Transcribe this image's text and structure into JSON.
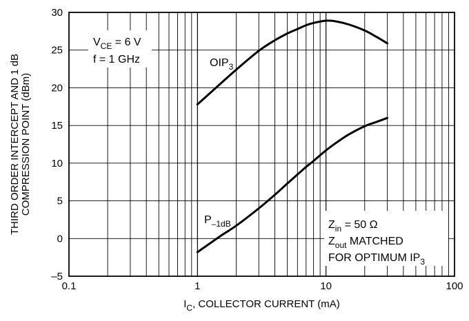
{
  "chart_data": {
    "type": "line",
    "title": "",
    "xlabel": {
      "main": "I",
      "sub": "C",
      "rest": ", COLLECTOR CURRENT (mA)"
    },
    "ylabel_lines": [
      "THIRD ORDER INTERCEPT AND 1 dB",
      "COMPRESSION POINT (dBm)"
    ],
    "x_scale": "log",
    "xlim": [
      0.1,
      100
    ],
    "ylim": [
      -5,
      30
    ],
    "x_ticks": [
      0.1,
      1,
      10,
      100
    ],
    "x_tick_labels": [
      "0.1",
      "1",
      "10",
      "100"
    ],
    "y_ticks": [
      -5,
      0,
      5,
      10,
      15,
      20,
      25,
      30
    ],
    "y_tick_labels": [
      "–5",
      "0",
      "5",
      "10",
      "15",
      "20",
      "25",
      "30"
    ],
    "grid": true,
    "series": [
      {
        "name": "OIP3",
        "x": [
          1,
          1.5,
          2,
          3,
          4,
          5,
          6,
          7,
          8,
          10,
          12,
          15,
          20,
          25,
          30
        ],
        "y": [
          17.8,
          20.5,
          22.4,
          24.9,
          26.3,
          27.2,
          27.8,
          28.3,
          28.6,
          28.9,
          28.8,
          28.4,
          27.6,
          26.7,
          25.9
        ]
      },
      {
        "name": "P-1dB",
        "x": [
          1,
          1.5,
          2,
          3,
          4,
          5,
          6,
          7,
          8,
          10,
          12,
          15,
          20,
          25,
          30
        ],
        "y": [
          -1.8,
          0.3,
          1.7,
          4.0,
          5.8,
          7.3,
          8.5,
          9.5,
          10.3,
          11.7,
          12.7,
          13.8,
          14.9,
          15.5,
          16.0
        ]
      }
    ],
    "series_labels": {
      "oip3": {
        "main": "OIP",
        "sub": "3"
      },
      "p1db": {
        "main": "P",
        "sub": "–1dB"
      }
    },
    "annotations": {
      "conditions": {
        "line1": {
          "main": "V",
          "sub": "CE",
          "rest": " = 6 V"
        },
        "line2": "f = 1 GHz"
      },
      "matching": {
        "line1": {
          "main": "Z",
          "sub": "in",
          "rest": " = 50 Ω"
        },
        "line2": {
          "main": "Z",
          "sub": "out",
          "rest": " MATCHED"
        },
        "line3": {
          "main": "FOR OPTIMUM IP",
          "sub": "3"
        }
      }
    }
  }
}
